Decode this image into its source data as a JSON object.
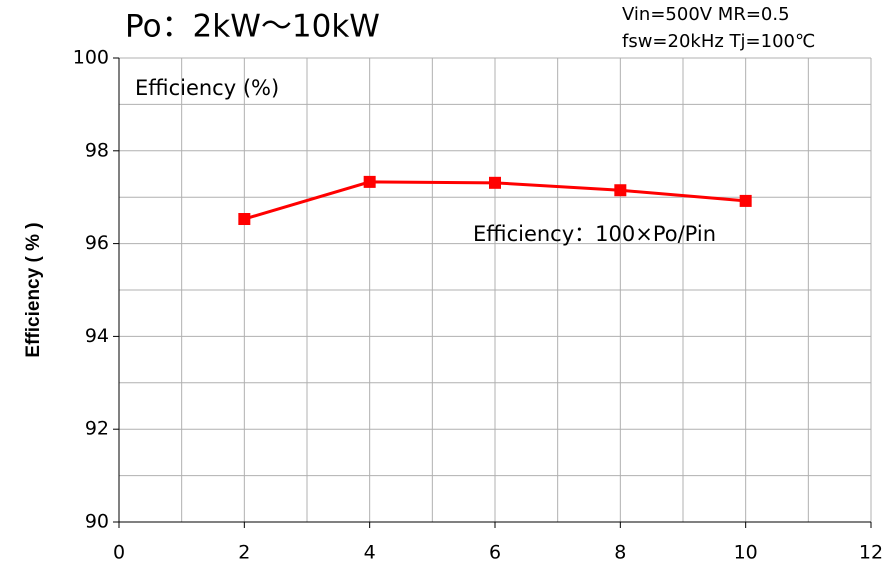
{
  "chart_data": {
    "type": "line",
    "title": "Po：2kW～10kW",
    "subtitle": [
      "Vin=500V MR=0.5",
      "fsw=20kHz Tj=100℃"
    ],
    "y_label": "Efficiency ( % )",
    "annotations": [
      "Efficiency (%)",
      "Efficiency：100×Po/Pin"
    ],
    "x": [
      2,
      4,
      6,
      8,
      10
    ],
    "values": [
      96.53,
      97.33,
      97.31,
      97.15,
      96.92
    ],
    "color": "#ff0000",
    "xlim": [
      0,
      12
    ],
    "xticks": [
      0,
      2,
      4,
      6,
      8,
      10,
      12
    ],
    "xminor": [
      1,
      3,
      5,
      7,
      9,
      11
    ],
    "ylim": [
      90,
      100
    ],
    "yticks": [
      90,
      92,
      94,
      96,
      98,
      100
    ],
    "yminor": [
      91,
      93,
      95,
      97,
      99
    ],
    "grid": true
  }
}
